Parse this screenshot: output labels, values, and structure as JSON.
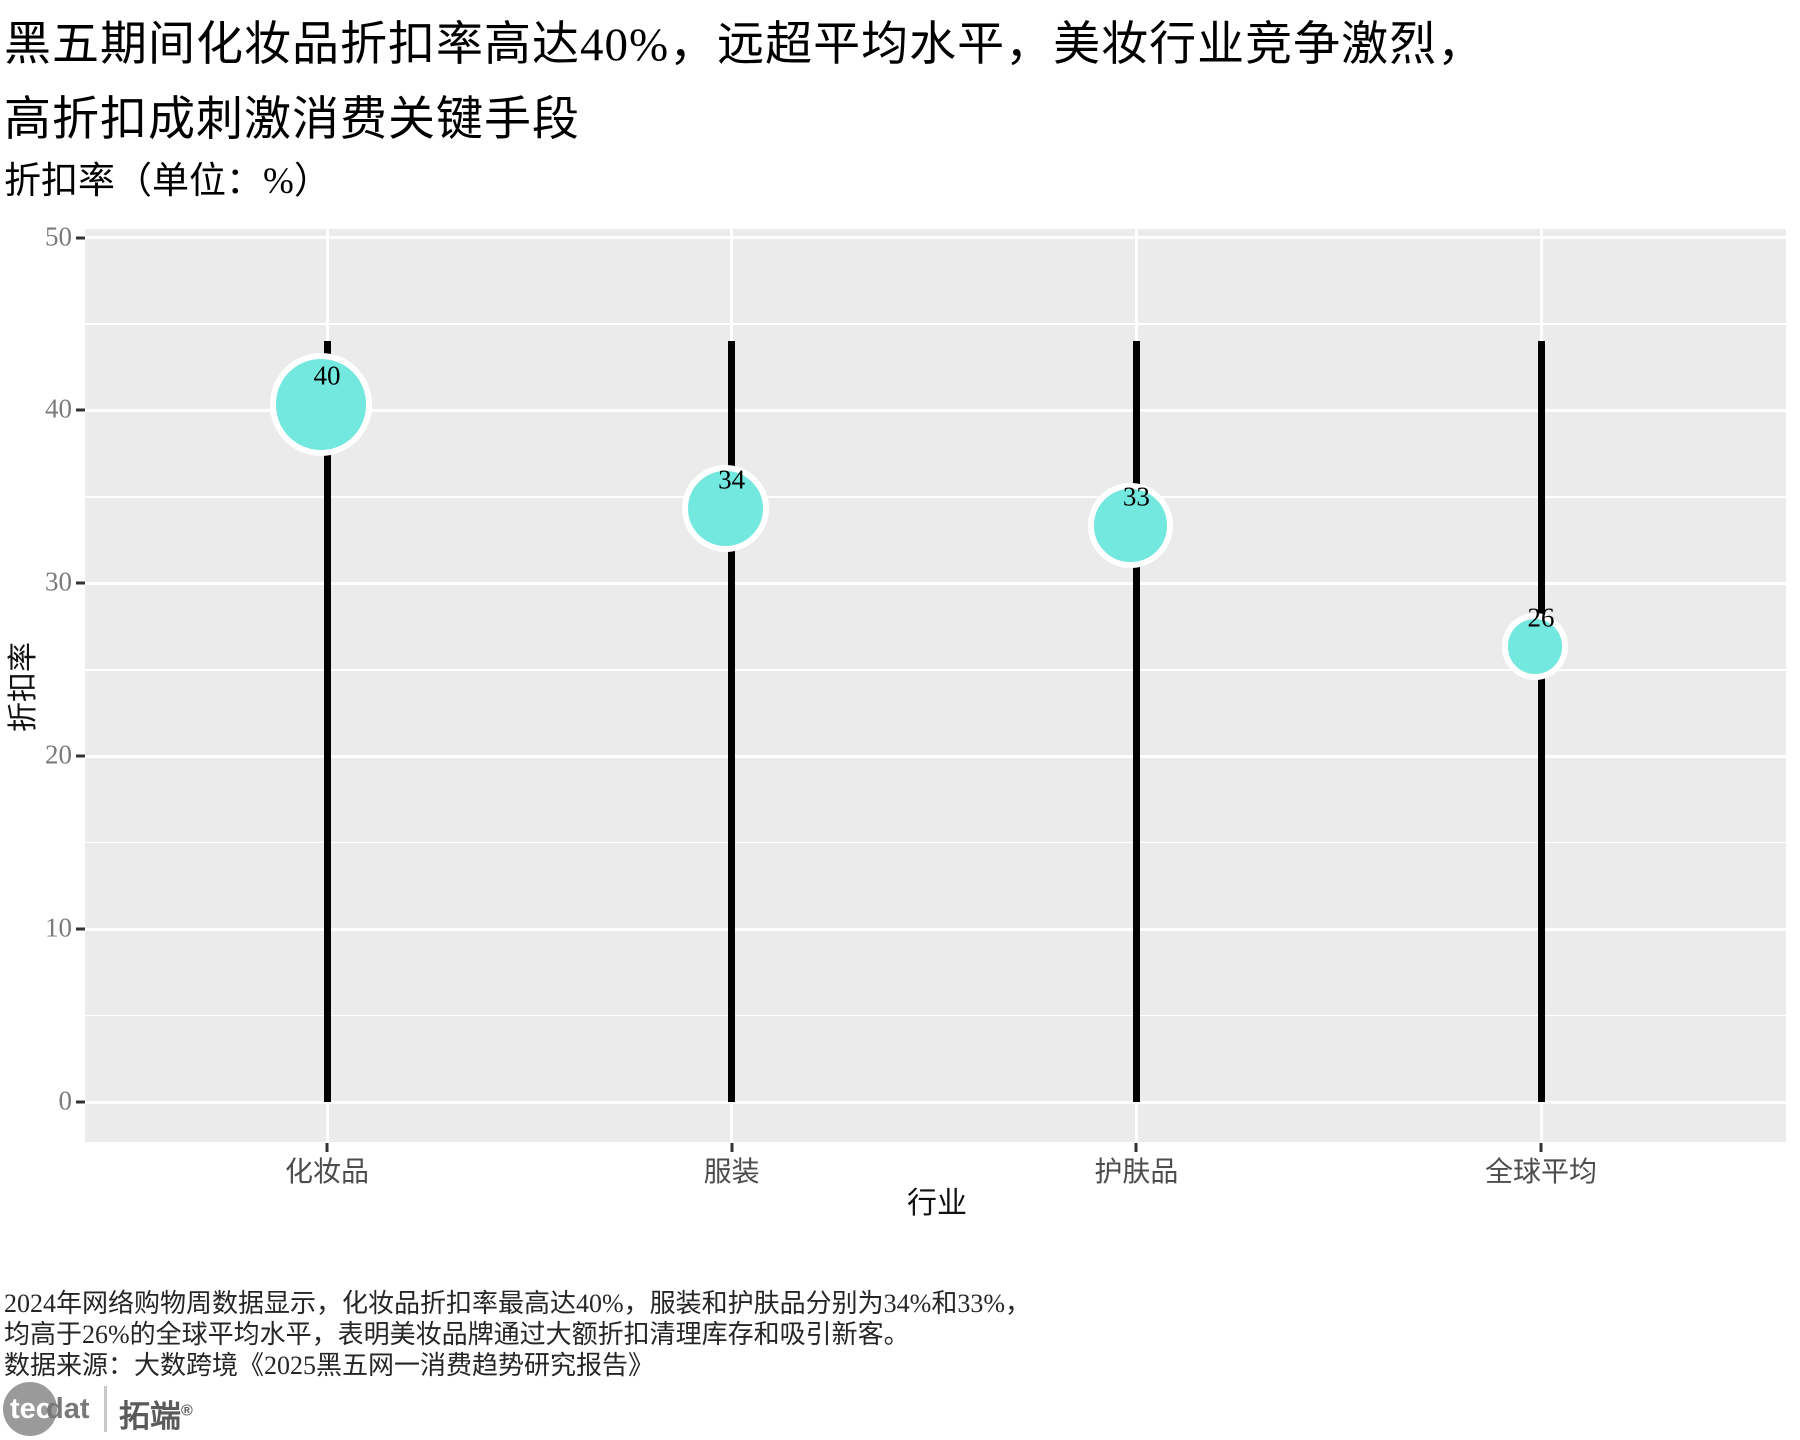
{
  "header": {
    "title_line1": "黑五期间化妆品折扣率高达40%，远超平均水平，美妆行业竞争激烈，",
    "title_line2": "高折扣成刺激消费关键手段"
  },
  "chart_data": {
    "type": "scatter",
    "variant": "lollipop",
    "title": "黑五期间化妆品折扣率高达40%，远超平均水平，美妆行业竞争激烈，高折扣成刺激消费关键手段",
    "subtitle": "折扣率（单位：%）",
    "categories": [
      "化妆品",
      "服装",
      "护肤品",
      "全球平均"
    ],
    "values": [
      40,
      34,
      33,
      26
    ],
    "value_labels": [
      "40",
      "34",
      "33",
      "26"
    ],
    "stick_top": 44,
    "xlabel": "行业",
    "ylabel": "折扣率",
    "ylim": [
      -2.5,
      50.5
    ],
    "yticks": [
      0,
      10,
      20,
      30,
      40,
      50
    ],
    "yticks_minor": [
      5,
      15,
      25,
      35,
      45
    ],
    "grid": "on",
    "legend": "none",
    "colors": {
      "panel_bg": "#EBEBEB",
      "gridline": "#FFFFFF",
      "stick": "#000000",
      "point_fill": "#73E8DF",
      "point_border": "#FFFFFF",
      "point_label": "#000000",
      "y_tick_text": "#7b7b7b",
      "x_tick_text": "#4d4d4d",
      "axis_title_text": "#111111"
    }
  },
  "footer": {
    "line1": "2024年网络购物周数据显示，化妆品折扣率最高达40%，服装和护肤品分别为34%和33%，",
    "line2": "均高于26%的全球平均水平，表明美妆品牌通过大额折扣清理库存和吸引新客。",
    "line3": "数据来源：大数跨境《2025黑五网一消费趋势研究报告》"
  },
  "logo": {
    "tec": "tec",
    "dat": "dat",
    "brand": "拓端",
    "registered": "®",
    "colors": {
      "circle": "#9a9a9a",
      "tec": "#ffffff",
      "dat": "#787878",
      "brand": "#5a5a5a"
    }
  }
}
